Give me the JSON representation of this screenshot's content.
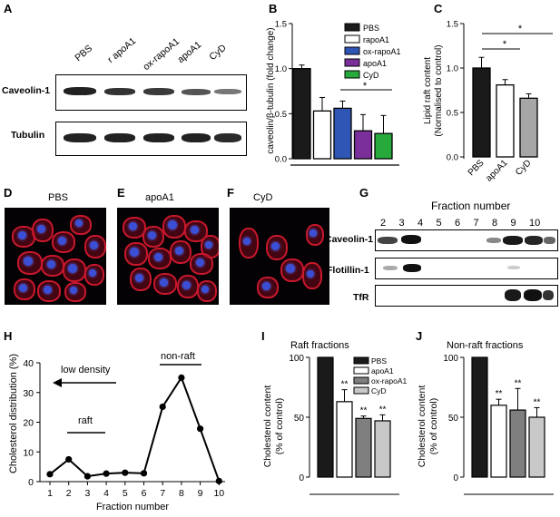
{
  "panels": {
    "A": {
      "letter": "A",
      "lanes": [
        "PBS",
        "r apoA1",
        "ox-rapoA1",
        "apoA1",
        "CyD"
      ],
      "rows": [
        "Caveolin-1",
        "Tubulin"
      ]
    },
    "B": {
      "letter": "B",
      "ylabel": "caveolin/β-tubulin (fold change)",
      "legend": [
        "PBS",
        "rapoA1",
        "ox-rapoA1",
        "apoA1",
        "CyD"
      ],
      "colors": [
        "#1a1a1a",
        "#ffffff",
        "#2f55b5",
        "#7a2f9b",
        "#27a93c"
      ],
      "sig": "*"
    },
    "C": {
      "letter": "C",
      "ylabel_line1": "Lipid raft content",
      "ylabel_line2": "(Normalised to control)",
      "sig1": "*",
      "sig2": "*"
    },
    "D": {
      "letter": "D",
      "label": "PBS"
    },
    "E": {
      "letter": "E",
      "label": "apoA1"
    },
    "F": {
      "letter": "F",
      "label": "CyD"
    },
    "G": {
      "letter": "G",
      "title": "Fraction number",
      "fractions": [
        "2",
        "3",
        "4",
        "5",
        "6",
        "7",
        "8",
        "9",
        "10"
      ],
      "rows": [
        "Caveolin-1",
        "Flotillin-1",
        "TfR"
      ]
    },
    "H": {
      "letter": "H",
      "low_density": "low density",
      "raft": "raft",
      "non_raft": "non-raft"
    },
    "I": {
      "letter": "I",
      "title": "Raft fractions",
      "ylabel_line1": "Cholesterol content",
      "ylabel_line2": "(% of control)",
      "legend": [
        "PBS",
        "apoA1",
        "ox-rapoA1",
        "CyD"
      ],
      "sig": [
        "**",
        "**",
        "**"
      ]
    },
    "J": {
      "letter": "J",
      "title": "Non-raft fractions",
      "ylabel_line1": "Cholesterol content",
      "ylabel_line2": "(% of control)",
      "sig": [
        "**",
        "**",
        "**"
      ]
    }
  },
  "chart_data": [
    {
      "id": "B",
      "type": "bar",
      "categories": [
        "PBS",
        "rapoA1",
        "ox-rapoA1",
        "apoA1",
        "CyD"
      ],
      "values": [
        1.0,
        0.53,
        0.56,
        0.31,
        0.28
      ],
      "errors": [
        0.04,
        0.15,
        0.08,
        0.18,
        0.2
      ],
      "ylabel": "caveolin/β-tubulin (fold change)",
      "yticks": [
        "0.0",
        "0.5",
        "1.0",
        "1.5"
      ],
      "ylim": [
        0,
        1.5
      ]
    },
    {
      "id": "C",
      "type": "bar",
      "categories": [
        "PBS",
        "apoA1",
        "CyD"
      ],
      "values": [
        1.0,
        0.81,
        0.66
      ],
      "errors": [
        0.12,
        0.06,
        0.05
      ],
      "ylabel": "Lipid raft content (Normalised to control)",
      "yticks": [
        "0.0",
        "0.5",
        "1.0",
        "1.5"
      ],
      "ylim": [
        0,
        1.5
      ]
    },
    {
      "id": "H",
      "type": "line",
      "x": [
        1,
        2,
        3,
        4,
        5,
        6,
        7,
        8,
        9,
        10
      ],
      "values": [
        2.5,
        7.5,
        1.8,
        2.7,
        3.0,
        2.8,
        25.2,
        35.0,
        17.8,
        0.2
      ],
      "xlabel": "Fraction number",
      "ylabel": "Cholesterol distribution (%)",
      "xticks": [
        "1",
        "2",
        "3",
        "4",
        "5",
        "6",
        "7",
        "8",
        "9",
        "10"
      ],
      "yticks": [
        "0",
        "10",
        "20",
        "30",
        "40"
      ],
      "ylim": [
        0,
        40
      ]
    },
    {
      "id": "I",
      "type": "bar",
      "categories": [
        "PBS",
        "apoA1",
        "ox-rapoA1",
        "CyD"
      ],
      "values": [
        100,
        63,
        49,
        47
      ],
      "errors": [
        0,
        10,
        2,
        5
      ],
      "ylabel": "Cholesterol content (% of control)",
      "yticks": [
        "0",
        "50",
        "100"
      ],
      "ylim": [
        0,
        100
      ]
    },
    {
      "id": "J",
      "type": "bar",
      "categories": [
        "PBS",
        "apoA1",
        "ox-rapoA1",
        "CyD"
      ],
      "values": [
        100,
        60,
        56,
        50
      ],
      "errors": [
        0,
        5,
        18,
        8
      ],
      "ylabel": "Cholesterol content (% of control)",
      "yticks": [
        "0",
        "50",
        "100"
      ],
      "ylim": [
        0,
        100
      ]
    }
  ]
}
